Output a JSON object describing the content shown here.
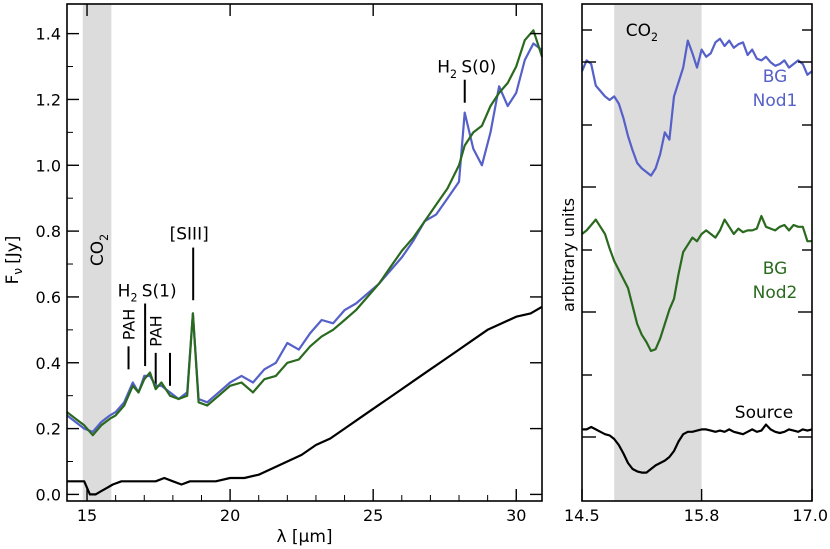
{
  "chart_data": [
    {
      "type": "line",
      "xlabel": "λ [μm]",
      "ylabel": "F",
      "ylabel_sub": "ν",
      "ylabel_unit": "[Jy]",
      "xlim": [
        14.3,
        30.9
      ],
      "ylim": [
        -0.02,
        1.49
      ],
      "xticks": [
        15,
        20,
        25,
        30
      ],
      "xtick_labels": [
        "15",
        "20",
        "25",
        "30"
      ],
      "yticks": [
        0.0,
        0.2,
        0.4,
        0.6,
        0.8,
        1.0,
        1.2,
        1.4
      ],
      "ytick_labels": [
        "0.0",
        "0.2",
        "0.4",
        "0.6",
        "0.8",
        "1.0",
        "1.2",
        "1.4"
      ],
      "shaded_band": {
        "x0": 14.85,
        "x1": 15.85,
        "label": "CO",
        "label_sub": "2"
      },
      "annotations": [
        {
          "label": "PAH",
          "x": 16.45,
          "y0": 0.38,
          "y1": 0.45,
          "vertical": true
        },
        {
          "label": "H",
          "label_sub": "2",
          "label_rest": "S(1)",
          "x": 17.03,
          "y0": 0.39,
          "y1": 0.58
        },
        {
          "label": "PAH",
          "x": 17.4,
          "y0": 0.33,
          "y1": 0.43,
          "vertical": true
        },
        {
          "label": "",
          "x": 17.9,
          "y0": 0.33,
          "y1": 0.43
        },
        {
          "label": "[SIII]",
          "x": 18.71,
          "y0": 0.59,
          "y1": 0.75
        },
        {
          "label": "H",
          "label_sub": "2",
          "label_rest": "S(0)",
          "x": 28.2,
          "y0": 1.19,
          "y1": 1.26
        }
      ],
      "series": [
        {
          "color": "#5560c8",
          "x": [
            14.3,
            14.6,
            14.9,
            15.2,
            15.5,
            15.8,
            16.0,
            16.3,
            16.6,
            16.8,
            17.0,
            17.2,
            17.4,
            17.6,
            17.9,
            18.2,
            18.5,
            18.7,
            18.9,
            19.2,
            19.6,
            20.0,
            20.4,
            20.8,
            21.2,
            21.6,
            22.0,
            22.4,
            22.8,
            23.2,
            23.6,
            24.0,
            24.4,
            24.8,
            25.2,
            25.6,
            26.0,
            26.4,
            26.8,
            27.2,
            27.6,
            28.0,
            28.2,
            28.5,
            28.8,
            29.1,
            29.4,
            29.7,
            30.0,
            30.3,
            30.6,
            30.9
          ],
          "y": [
            0.24,
            0.22,
            0.2,
            0.19,
            0.22,
            0.24,
            0.25,
            0.28,
            0.34,
            0.31,
            0.36,
            0.36,
            0.33,
            0.33,
            0.31,
            0.29,
            0.31,
            0.55,
            0.29,
            0.28,
            0.31,
            0.34,
            0.36,
            0.34,
            0.38,
            0.4,
            0.46,
            0.44,
            0.49,
            0.53,
            0.52,
            0.56,
            0.58,
            0.61,
            0.64,
            0.68,
            0.72,
            0.77,
            0.83,
            0.85,
            0.9,
            0.95,
            1.16,
            1.05,
            1.0,
            1.1,
            1.24,
            1.18,
            1.22,
            1.32,
            1.37,
            1.35
          ]
        },
        {
          "color": "#2a6a1e",
          "x": [
            14.3,
            14.6,
            14.9,
            15.2,
            15.5,
            15.8,
            16.0,
            16.3,
            16.6,
            16.8,
            17.0,
            17.2,
            17.4,
            17.6,
            17.9,
            18.2,
            18.5,
            18.7,
            18.9,
            19.2,
            19.6,
            20.0,
            20.4,
            20.8,
            21.2,
            21.6,
            22.0,
            22.4,
            22.8,
            23.2,
            23.6,
            24.0,
            24.4,
            24.8,
            25.2,
            25.6,
            26.0,
            26.4,
            26.8,
            27.2,
            27.6,
            28.0,
            28.2,
            28.5,
            28.8,
            29.1,
            29.4,
            29.7,
            30.0,
            30.3,
            30.6,
            30.9
          ],
          "y": [
            0.25,
            0.23,
            0.21,
            0.18,
            0.21,
            0.23,
            0.24,
            0.27,
            0.33,
            0.31,
            0.35,
            0.37,
            0.32,
            0.34,
            0.3,
            0.29,
            0.3,
            0.55,
            0.28,
            0.27,
            0.3,
            0.33,
            0.34,
            0.31,
            0.35,
            0.36,
            0.4,
            0.41,
            0.45,
            0.48,
            0.5,
            0.53,
            0.56,
            0.6,
            0.64,
            0.69,
            0.74,
            0.78,
            0.83,
            0.88,
            0.93,
            1.0,
            1.06,
            1.1,
            1.12,
            1.18,
            1.22,
            1.25,
            1.3,
            1.38,
            1.41,
            1.33
          ]
        },
        {
          "color": "#000000",
          "x": [
            14.3,
            14.6,
            14.9,
            15.1,
            15.3,
            15.5,
            15.7,
            15.9,
            16.2,
            16.5,
            16.8,
            17.1,
            17.4,
            17.7,
            18.0,
            18.3,
            18.6,
            19.0,
            19.5,
            20.0,
            20.5,
            21.0,
            21.5,
            22.0,
            22.5,
            23.0,
            23.5,
            24.0,
            24.5,
            25.0,
            25.5,
            26.0,
            26.5,
            27.0,
            27.5,
            28.0,
            28.5,
            29.0,
            29.5,
            30.0,
            30.5,
            30.9
          ],
          "y": [
            0.04,
            0.04,
            0.04,
            0.0,
            0.0,
            0.01,
            0.02,
            0.03,
            0.04,
            0.04,
            0.04,
            0.04,
            0.04,
            0.05,
            0.04,
            0.03,
            0.04,
            0.04,
            0.04,
            0.05,
            0.05,
            0.06,
            0.08,
            0.1,
            0.12,
            0.15,
            0.17,
            0.2,
            0.23,
            0.26,
            0.29,
            0.32,
            0.35,
            0.38,
            0.41,
            0.44,
            0.47,
            0.5,
            0.52,
            0.54,
            0.55,
            0.57
          ]
        }
      ]
    },
    {
      "type": "line",
      "ylabel": "arbitrary units",
      "xlim": [
        14.5,
        17.0
      ],
      "xticks": [
        14.5,
        15.8,
        17.0
      ],
      "xtick_labels": [
        "14.5",
        "15.8",
        "17.0"
      ],
      "shaded_band": {
        "x0": 14.85,
        "x1": 15.8,
        "label": "CO",
        "label_sub": "2"
      },
      "series": [
        {
          "name": "BG Nod1",
          "label_lines": [
            "BG",
            "Nod1"
          ],
          "color": "#5560c8",
          "x": [
            14.5,
            14.55,
            14.6,
            14.65,
            14.7,
            14.75,
            14.8,
            14.85,
            14.9,
            14.95,
            15.0,
            15.05,
            15.1,
            15.15,
            15.2,
            15.25,
            15.3,
            15.35,
            15.4,
            15.45,
            15.5,
            15.55,
            15.6,
            15.65,
            15.7,
            15.75,
            15.8,
            15.85,
            15.9,
            15.95,
            16.0,
            16.05,
            16.1,
            16.15,
            16.2,
            16.25,
            16.3,
            16.35,
            16.4,
            16.45,
            16.5,
            16.55,
            16.6,
            16.65,
            16.7,
            16.75,
            16.8,
            16.85,
            16.9,
            16.95,
            17.0
          ],
          "y": [
            0.66,
            0.72,
            0.7,
            0.58,
            0.55,
            0.52,
            0.5,
            0.52,
            0.48,
            0.4,
            0.3,
            0.22,
            0.15,
            0.12,
            0.1,
            0.08,
            0.12,
            0.2,
            0.32,
            0.28,
            0.52,
            0.6,
            0.68,
            0.83,
            0.76,
            0.68,
            0.78,
            0.74,
            0.76,
            0.82,
            0.84,
            0.8,
            0.83,
            0.79,
            0.81,
            0.82,
            0.75,
            0.78,
            0.73,
            0.72,
            0.74,
            0.71,
            0.69,
            0.7,
            0.72,
            0.68,
            0.7,
            0.72,
            0.7,
            0.64,
            0.66
          ]
        },
        {
          "name": "BG Nod2",
          "label_lines": [
            "BG",
            "Nod2"
          ],
          "color": "#2a6a1e",
          "x": [
            14.5,
            14.55,
            14.6,
            14.65,
            14.7,
            14.75,
            14.8,
            14.85,
            14.9,
            14.95,
            15.0,
            15.05,
            15.1,
            15.15,
            15.2,
            15.25,
            15.3,
            15.35,
            15.4,
            15.45,
            15.5,
            15.55,
            15.6,
            15.65,
            15.7,
            15.75,
            15.8,
            15.85,
            15.9,
            15.95,
            16.0,
            16.05,
            16.1,
            16.15,
            16.2,
            16.25,
            16.3,
            16.35,
            16.4,
            16.45,
            16.5,
            16.55,
            16.6,
            16.65,
            16.7,
            16.75,
            16.8,
            16.85,
            16.9,
            16.95,
            17.0
          ],
          "y": [
            0.7,
            0.72,
            0.75,
            0.78,
            0.74,
            0.7,
            0.62,
            0.55,
            0.5,
            0.45,
            0.4,
            0.3,
            0.2,
            0.14,
            0.1,
            0.05,
            0.06,
            0.12,
            0.2,
            0.28,
            0.34,
            0.48,
            0.6,
            0.64,
            0.68,
            0.66,
            0.7,
            0.72,
            0.7,
            0.68,
            0.72,
            0.78,
            0.74,
            0.7,
            0.73,
            0.71,
            0.72,
            0.72,
            0.73,
            0.8,
            0.74,
            0.73,
            0.72,
            0.74,
            0.75,
            0.72,
            0.75,
            0.74,
            0.74,
            0.66,
            0.66
          ]
        },
        {
          "name": "Source",
          "label_lines": [
            "Source"
          ],
          "color": "#000000",
          "x": [
            14.5,
            14.55,
            14.6,
            14.65,
            14.7,
            14.75,
            14.8,
            14.85,
            14.9,
            14.95,
            15.0,
            15.05,
            15.1,
            15.15,
            15.2,
            15.25,
            15.3,
            15.35,
            15.4,
            15.45,
            15.5,
            15.55,
            15.6,
            15.65,
            15.7,
            15.75,
            15.8,
            15.85,
            15.9,
            15.95,
            16.0,
            16.05,
            16.1,
            16.15,
            16.2,
            16.25,
            16.3,
            16.35,
            16.4,
            16.45,
            16.5,
            16.55,
            16.6,
            16.65,
            16.7,
            16.75,
            16.8,
            16.85,
            16.9,
            16.95,
            17.0
          ],
          "y": [
            0.38,
            0.38,
            0.4,
            0.38,
            0.36,
            0.34,
            0.33,
            0.3,
            0.25,
            0.18,
            0.1,
            0.05,
            0.03,
            0.02,
            0.02,
            0.05,
            0.08,
            0.1,
            0.12,
            0.15,
            0.2,
            0.28,
            0.34,
            0.36,
            0.36,
            0.37,
            0.38,
            0.38,
            0.37,
            0.36,
            0.37,
            0.36,
            0.38,
            0.36,
            0.35,
            0.34,
            0.36,
            0.38,
            0.36,
            0.37,
            0.42,
            0.38,
            0.36,
            0.35,
            0.36,
            0.38,
            0.37,
            0.36,
            0.38,
            0.37,
            0.38
          ]
        }
      ]
    }
  ]
}
